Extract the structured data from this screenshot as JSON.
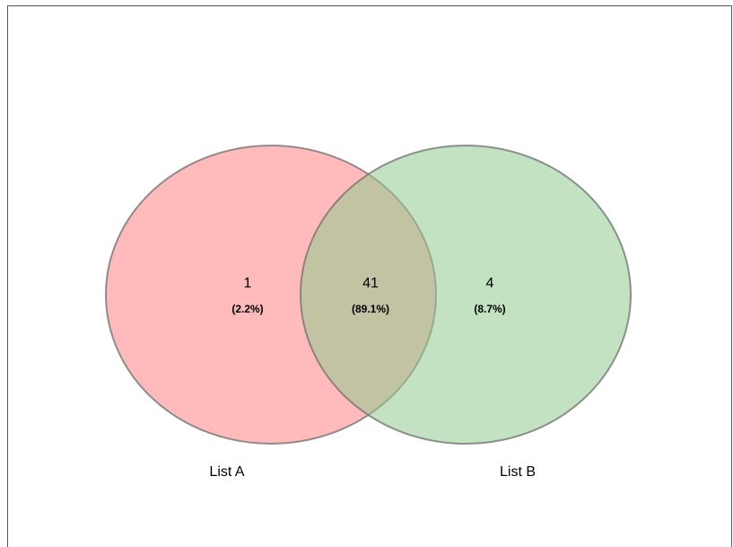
{
  "diagram": {
    "type": "venn",
    "sets": [
      {
        "name": "List A",
        "color": "#ff7f7f",
        "opacity": 0.55
      },
      {
        "name": "List B",
        "color": "#8fcb8f",
        "opacity": 0.55
      }
    ],
    "regions": {
      "a_only": {
        "count": "1",
        "percent": "(2.2%)"
      },
      "intersection": {
        "count": "41",
        "percent": "(89.1%)"
      },
      "b_only": {
        "count": "4",
        "percent": "(8.7%)"
      }
    },
    "outline_color": "#5f5f5f"
  }
}
